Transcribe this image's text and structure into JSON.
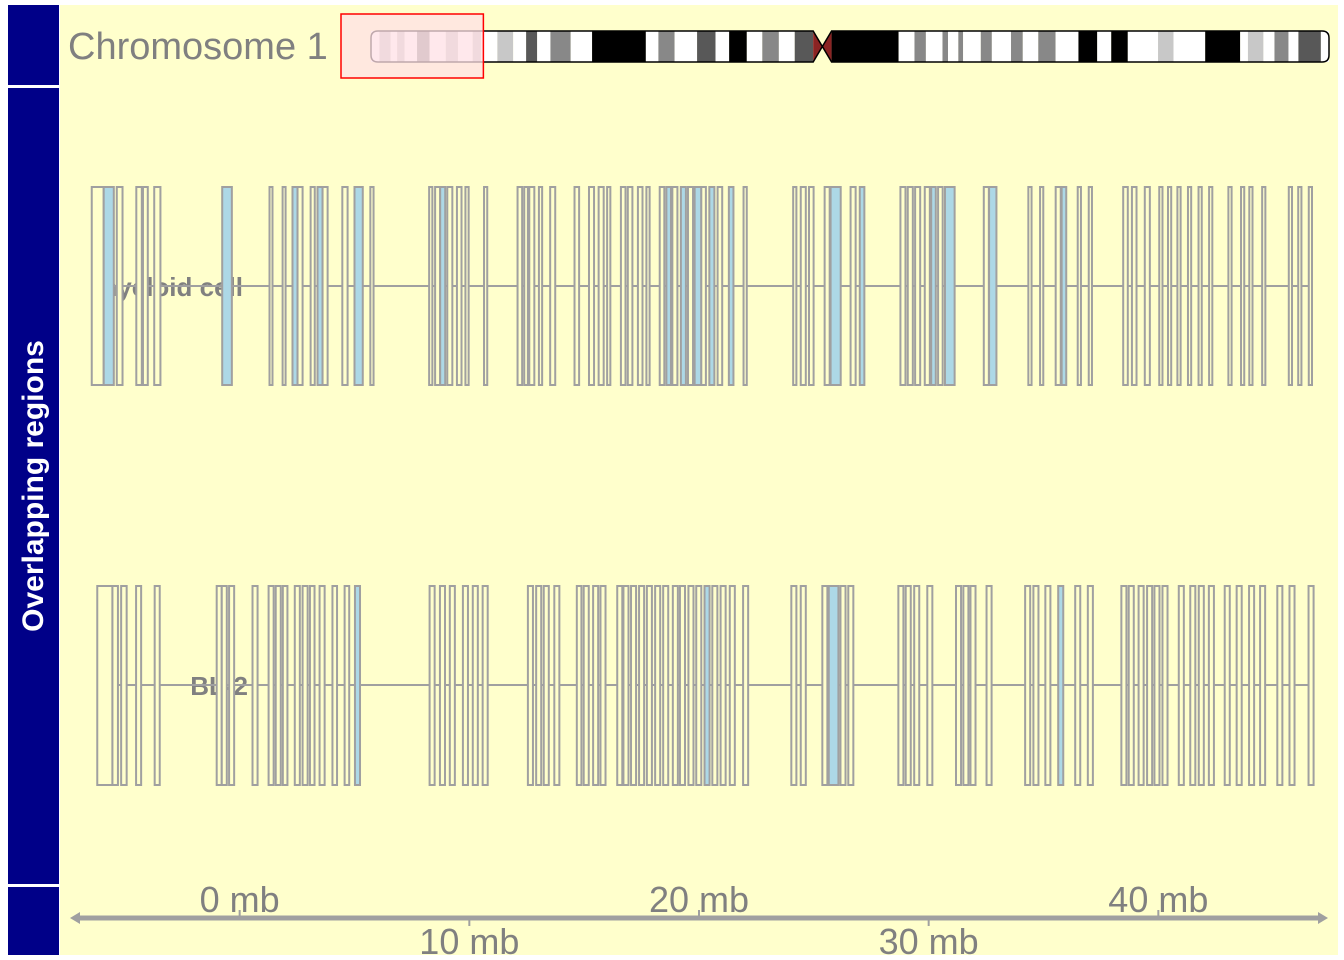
{
  "ideogram": {
    "chromosome_label": "Chromosome 1"
  },
  "panel_title": "Overlapping regions",
  "colors": {
    "background": "#ffffcc",
    "panel": "#000088",
    "feature_border": "#a0a0a0",
    "feature_fill": "#add8e6",
    "highlight_border": "#ff0000",
    "highlight_fill": "#ffe0e6",
    "axis": "#a0a0a0",
    "centromere": "#8b2323"
  },
  "chart_data": {
    "type": "genome_tracks",
    "chromosome": "Chromosome 1",
    "x_unit": "mb",
    "xlim": [
      -7.3,
      47.3
    ],
    "axis": {
      "ticks": [
        0,
        10,
        20,
        30,
        40
      ],
      "tick_labels": [
        "0 mb",
        "10 mb",
        "20 mb",
        "30 mb",
        "40 mb"
      ]
    },
    "highlight_region_mb": [
      -7.8,
      30.5
    ],
    "ideogram_bands": [
      {
        "start": 0.0,
        "end": 2.3,
        "stain": "gneg"
      },
      {
        "start": 2.3,
        "end": 5.3,
        "stain": "gpos25"
      },
      {
        "start": 5.3,
        "end": 7.1,
        "stain": "gneg"
      },
      {
        "start": 7.1,
        "end": 9.1,
        "stain": "gpos25"
      },
      {
        "start": 9.1,
        "end": 12.5,
        "stain": "gneg"
      },
      {
        "start": 12.5,
        "end": 15.9,
        "stain": "gpos50"
      },
      {
        "start": 15.9,
        "end": 20.3,
        "stain": "gneg"
      },
      {
        "start": 20.3,
        "end": 23.6,
        "stain": "gpos25"
      },
      {
        "start": 23.6,
        "end": 27.6,
        "stain": "gneg"
      },
      {
        "start": 27.6,
        "end": 29.9,
        "stain": "gpos25"
      },
      {
        "start": 29.9,
        "end": 34.3,
        "stain": "gneg"
      },
      {
        "start": 34.3,
        "end": 38.6,
        "stain": "gpos25"
      },
      {
        "start": 38.6,
        "end": 42.1,
        "stain": "gneg"
      },
      {
        "start": 42.1,
        "end": 45.1,
        "stain": "gpos75"
      },
      {
        "start": 45.1,
        "end": 48.7,
        "stain": "gneg"
      },
      {
        "start": 48.7,
        "end": 54.2,
        "stain": "gpos50"
      },
      {
        "start": 54.2,
        "end": 60.0,
        "stain": "gneg"
      },
      {
        "start": 60.0,
        "end": 74.6,
        "stain": "gpos100"
      },
      {
        "start": 74.6,
        "end": 78.0,
        "stain": "gneg"
      },
      {
        "start": 78.0,
        "end": 82.4,
        "stain": "gpos50"
      },
      {
        "start": 82.4,
        "end": 88.5,
        "stain": "gneg"
      },
      {
        "start": 88.5,
        "end": 93.5,
        "stain": "gpos75"
      },
      {
        "start": 93.5,
        "end": 97.2,
        "stain": "gneg"
      },
      {
        "start": 97.2,
        "end": 102.0,
        "stain": "gpos100"
      },
      {
        "start": 102.0,
        "end": 106.2,
        "stain": "gneg"
      },
      {
        "start": 106.2,
        "end": 110.7,
        "stain": "gpos50"
      },
      {
        "start": 110.7,
        "end": 115.0,
        "stain": "gneg"
      },
      {
        "start": 115.0,
        "end": 120.0,
        "stain": "gpos75"
      },
      {
        "start": 120.0,
        "end": 125.0,
        "stain": "acen"
      },
      {
        "start": 125.0,
        "end": 143.2,
        "stain": "gpos100"
      },
      {
        "start": 143.2,
        "end": 147.5,
        "stain": "gneg"
      },
      {
        "start": 147.5,
        "end": 150.6,
        "stain": "gpos50"
      },
      {
        "start": 150.6,
        "end": 155.1,
        "stain": "gneg"
      },
      {
        "start": 155.1,
        "end": 156.6,
        "stain": "gpos50"
      },
      {
        "start": 156.6,
        "end": 159.4,
        "stain": "gneg"
      },
      {
        "start": 159.4,
        "end": 160.7,
        "stain": "gpos50"
      },
      {
        "start": 160.7,
        "end": 165.5,
        "stain": "gneg"
      },
      {
        "start": 165.5,
        "end": 168.5,
        "stain": "gpos50"
      },
      {
        "start": 168.5,
        "end": 173.7,
        "stain": "gneg"
      },
      {
        "start": 173.7,
        "end": 176.9,
        "stain": "gpos50"
      },
      {
        "start": 176.9,
        "end": 181.1,
        "stain": "gneg"
      },
      {
        "start": 181.1,
        "end": 185.8,
        "stain": "gpos50"
      },
      {
        "start": 185.8,
        "end": 192.0,
        "stain": "gneg"
      },
      {
        "start": 192.0,
        "end": 197.1,
        "stain": "gpos100"
      },
      {
        "start": 197.1,
        "end": 200.9,
        "stain": "gneg"
      },
      {
        "start": 200.9,
        "end": 205.4,
        "stain": "gpos100"
      },
      {
        "start": 205.4,
        "end": 213.6,
        "stain": "gneg"
      },
      {
        "start": 213.6,
        "end": 217.8,
        "stain": "gpos25"
      },
      {
        "start": 217.8,
        "end": 226.4,
        "stain": "gneg"
      },
      {
        "start": 226.4,
        "end": 235.9,
        "stain": "gpos100"
      },
      {
        "start": 235.9,
        "end": 238.0,
        "stain": "gneg"
      },
      {
        "start": 238.0,
        "end": 242.2,
        "stain": "gpos25"
      },
      {
        "start": 242.2,
        "end": 245.2,
        "stain": "gneg"
      },
      {
        "start": 245.2,
        "end": 249.0,
        "stain": "gpos50"
      },
      {
        "start": 249.0,
        "end": 251.7,
        "stain": "gneg"
      },
      {
        "start": 251.7,
        "end": 257.8,
        "stain": "gpos75"
      },
      {
        "start": 257.8,
        "end": 260.0,
        "stain": "gneg"
      }
    ],
    "ideogram_length_mb": 260.0,
    "tracks": [
      {
        "name": "myeloid cell",
        "features": [
          [
            -6.44,
            -5.92,
            "gray"
          ],
          [
            -5.92,
            -5.48,
            "blue"
          ],
          [
            -5.35,
            -5.1,
            "gray"
          ],
          [
            -4.5,
            -4.26,
            "gray"
          ],
          [
            -4.21,
            -4.0,
            "gray"
          ],
          [
            -3.72,
            -3.45,
            "gray"
          ],
          [
            -0.76,
            -0.34,
            "blue"
          ],
          [
            1.3,
            1.43,
            "gray"
          ],
          [
            1.87,
            2.0,
            "gray"
          ],
          [
            2.3,
            2.52,
            "blue"
          ],
          [
            2.52,
            2.74,
            "gray"
          ],
          [
            3.09,
            3.27,
            "gray"
          ],
          [
            3.39,
            3.61,
            "blue"
          ],
          [
            3.61,
            3.83,
            "gray"
          ],
          [
            4.47,
            4.7,
            "gray"
          ],
          [
            5.0,
            5.36,
            "blue"
          ],
          [
            5.69,
            5.83,
            "gray"
          ],
          [
            8.25,
            8.39,
            "gray"
          ],
          [
            8.51,
            8.73,
            "gray"
          ],
          [
            8.73,
            8.95,
            "blue"
          ],
          [
            9.04,
            9.26,
            "gray"
          ],
          [
            9.46,
            9.66,
            "gray"
          ],
          [
            9.83,
            9.97,
            "gray"
          ],
          [
            10.64,
            10.78,
            "gray"
          ],
          [
            12.1,
            12.3,
            "gray"
          ],
          [
            12.39,
            12.55,
            "gray"
          ],
          [
            12.61,
            12.83,
            "gray"
          ],
          [
            13.03,
            13.17,
            "gray"
          ],
          [
            13.52,
            13.74,
            "gray"
          ],
          [
            14.58,
            14.78,
            "gray"
          ],
          [
            15.21,
            15.43,
            "gray"
          ],
          [
            15.63,
            15.85,
            "gray"
          ],
          [
            16.0,
            16.14,
            "gray"
          ],
          [
            16.6,
            16.8,
            "gray"
          ],
          [
            16.9,
            17.1,
            "gray"
          ],
          [
            17.34,
            17.54,
            "gray"
          ],
          [
            17.71,
            17.85,
            "gray"
          ],
          [
            18.29,
            18.49,
            "gray"
          ],
          [
            18.58,
            18.78,
            "blue"
          ],
          [
            18.84,
            19.06,
            "gray"
          ],
          [
            19.21,
            19.43,
            "blue"
          ],
          [
            19.52,
            19.74,
            "gray"
          ],
          [
            19.81,
            20.1,
            "blue"
          ],
          [
            20.1,
            20.3,
            "gray"
          ],
          [
            20.45,
            20.67,
            "blue"
          ],
          [
            20.81,
            21.01,
            "gray"
          ],
          [
            21.3,
            21.5,
            "blue"
          ],
          [
            21.94,
            22.08,
            "gray"
          ],
          [
            24.1,
            24.24,
            "gray"
          ],
          [
            24.43,
            24.65,
            "gray"
          ],
          [
            24.79,
            24.99,
            "gray"
          ],
          [
            25.47,
            25.69,
            "gray"
          ],
          [
            25.73,
            26.17,
            "blue"
          ],
          [
            26.6,
            26.82,
            "gray"
          ],
          [
            27.0,
            27.2,
            "blue"
          ],
          [
            28.77,
            28.99,
            "gray"
          ],
          [
            29.09,
            29.31,
            "gray"
          ],
          [
            29.41,
            29.63,
            "gray"
          ],
          [
            29.83,
            30.05,
            "gray"
          ],
          [
            30.11,
            30.31,
            "blue"
          ],
          [
            30.41,
            30.61,
            "gray"
          ],
          [
            30.71,
            31.13,
            "blue"
          ],
          [
            32.4,
            32.62,
            "gray"
          ],
          [
            32.63,
            32.95,
            "blue"
          ],
          [
            34.34,
            34.48,
            "gray"
          ],
          [
            34.85,
            34.99,
            "gray"
          ],
          [
            35.53,
            35.75,
            "gray"
          ],
          [
            35.79,
            35.99,
            "blue"
          ],
          [
            36.49,
            36.63,
            "gray"
          ],
          [
            36.97,
            37.11,
            "gray"
          ],
          [
            38.47,
            38.67,
            "gray"
          ],
          [
            38.85,
            39.05,
            "gray"
          ],
          [
            39.41,
            39.63,
            "gray"
          ],
          [
            40.04,
            40.18,
            "gray"
          ],
          [
            40.42,
            40.56,
            "gray"
          ],
          [
            40.83,
            40.97,
            "gray"
          ],
          [
            41.29,
            41.43,
            "gray"
          ],
          [
            41.75,
            41.89,
            "gray"
          ],
          [
            42.21,
            42.35,
            "gray"
          ],
          [
            43.05,
            43.19,
            "gray"
          ],
          [
            43.6,
            43.74,
            "gray"
          ],
          [
            43.96,
            44.1,
            "gray"
          ],
          [
            44.52,
            44.66,
            "gray"
          ],
          [
            45.68,
            45.82,
            "gray"
          ],
          [
            46.09,
            46.23,
            "gray"
          ],
          [
            46.55,
            46.69,
            "gray"
          ]
        ]
      },
      {
        "name": "BL-2",
        "features": [
          [
            -6.2,
            -5.54,
            "gray"
          ],
          [
            -5.54,
            -5.3,
            "gray"
          ],
          [
            -5.16,
            -4.92,
            "gray"
          ],
          [
            -4.51,
            -4.29,
            "gray"
          ],
          [
            -3.7,
            -3.48,
            "gray"
          ],
          [
            -1.0,
            -0.78,
            "gray"
          ],
          [
            -0.78,
            -0.56,
            "gray"
          ],
          [
            -0.46,
            -0.24,
            "gray"
          ],
          [
            0.56,
            0.78,
            "gray"
          ],
          [
            1.26,
            1.48,
            "gray"
          ],
          [
            1.57,
            1.79,
            "gray"
          ],
          [
            1.88,
            2.08,
            "gray"
          ],
          [
            2.4,
            2.62,
            "gray"
          ],
          [
            2.74,
            2.96,
            "gray"
          ],
          [
            3.06,
            3.26,
            "gray"
          ],
          [
            3.48,
            3.7,
            "gray"
          ],
          [
            4.04,
            4.24,
            "gray"
          ],
          [
            4.57,
            4.77,
            "gray"
          ],
          [
            5.02,
            5.24,
            "blue"
          ],
          [
            8.27,
            8.49,
            "gray"
          ],
          [
            8.72,
            8.94,
            "gray"
          ],
          [
            9.15,
            9.37,
            "gray"
          ],
          [
            9.72,
            9.94,
            "gray"
          ],
          [
            10.15,
            10.37,
            "gray"
          ],
          [
            10.58,
            10.8,
            "gray"
          ],
          [
            12.55,
            12.77,
            "gray"
          ],
          [
            12.91,
            13.13,
            "gray"
          ],
          [
            13.24,
            13.46,
            "gray"
          ],
          [
            13.7,
            13.92,
            "gray"
          ],
          [
            14.68,
            14.88,
            "gray"
          ],
          [
            14.98,
            15.2,
            "gray"
          ],
          [
            15.39,
            15.61,
            "gray"
          ],
          [
            15.71,
            15.93,
            "gray"
          ],
          [
            16.44,
            16.66,
            "gray"
          ],
          [
            16.71,
            16.93,
            "gray"
          ],
          [
            17.04,
            17.26,
            "gray"
          ],
          [
            17.39,
            17.61,
            "gray"
          ],
          [
            17.73,
            17.95,
            "gray"
          ],
          [
            18.09,
            18.31,
            "gray"
          ],
          [
            18.44,
            18.66,
            "gray"
          ],
          [
            18.86,
            19.08,
            "gray"
          ],
          [
            19.17,
            19.39,
            "gray"
          ],
          [
            19.54,
            19.76,
            "gray"
          ],
          [
            19.88,
            20.1,
            "gray"
          ],
          [
            20.24,
            20.46,
            "blue"
          ],
          [
            20.58,
            20.8,
            "gray"
          ],
          [
            20.94,
            21.16,
            "gray"
          ],
          [
            21.34,
            21.56,
            "gray"
          ],
          [
            21.92,
            22.14,
            "gray"
          ],
          [
            24.02,
            24.24,
            "gray"
          ],
          [
            24.43,
            24.65,
            "gray"
          ],
          [
            25.37,
            25.59,
            "gray"
          ],
          [
            25.65,
            26.07,
            "blue"
          ],
          [
            26.16,
            26.38,
            "gray"
          ],
          [
            26.5,
            26.72,
            "gray"
          ],
          [
            28.68,
            28.9,
            "gray"
          ],
          [
            29.0,
            29.22,
            "gray"
          ],
          [
            29.37,
            29.59,
            "gray"
          ],
          [
            29.94,
            30.16,
            "gray"
          ],
          [
            31.19,
            31.41,
            "gray"
          ],
          [
            31.51,
            31.73,
            "gray"
          ],
          [
            31.82,
            32.04,
            "gray"
          ],
          [
            32.52,
            32.74,
            "gray"
          ],
          [
            34.2,
            34.42,
            "gray"
          ],
          [
            34.56,
            34.78,
            "gray"
          ],
          [
            35.08,
            35.3,
            "gray"
          ],
          [
            35.64,
            35.86,
            "blue"
          ],
          [
            36.38,
            36.6,
            "gray"
          ],
          [
            36.93,
            37.15,
            "gray"
          ],
          [
            38.39,
            38.61,
            "gray"
          ],
          [
            38.71,
            38.93,
            "gray"
          ],
          [
            39.14,
            39.36,
            "gray"
          ],
          [
            39.51,
            39.73,
            "gray"
          ],
          [
            39.83,
            40.05,
            "gray"
          ],
          [
            40.18,
            40.4,
            "gray"
          ],
          [
            40.89,
            41.11,
            "gray"
          ],
          [
            41.39,
            41.61,
            "gray"
          ],
          [
            41.76,
            41.98,
            "gray"
          ],
          [
            42.2,
            42.42,
            "gray"
          ],
          [
            42.89,
            43.11,
            "gray"
          ],
          [
            43.41,
            43.63,
            "gray"
          ],
          [
            43.95,
            44.17,
            "gray"
          ],
          [
            44.43,
            44.65,
            "gray"
          ],
          [
            45.18,
            45.4,
            "gray"
          ],
          [
            45.71,
            45.93,
            "gray"
          ],
          [
            46.54,
            46.76,
            "gray"
          ]
        ]
      }
    ]
  }
}
